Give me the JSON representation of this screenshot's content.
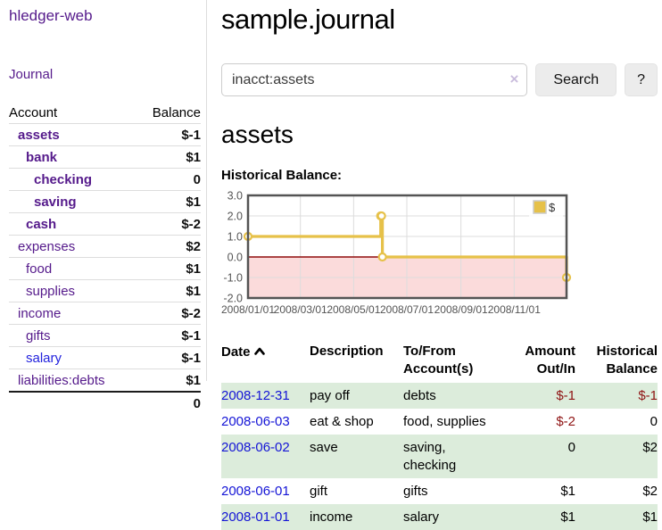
{
  "app": {
    "brand": "hledger-web",
    "nav": {
      "journal": "Journal"
    }
  },
  "sidebar": {
    "header": {
      "account": "Account",
      "balance": "Balance"
    },
    "accounts": [
      {
        "name": "assets",
        "indent": 1,
        "bold": true,
        "balance": "$-1",
        "balance_class": "neg-strong"
      },
      {
        "name": "bank",
        "indent": 2,
        "bold": true,
        "balance": "$1",
        "balance_class": ""
      },
      {
        "name": "checking",
        "indent": 3,
        "bold": true,
        "balance": "0",
        "balance_class": ""
      },
      {
        "name": "saving",
        "indent": 3,
        "bold": true,
        "balance": "$1",
        "balance_class": ""
      },
      {
        "name": "cash",
        "indent": 2,
        "bold": true,
        "balance": "$-2",
        "balance_class": "neg-strong"
      },
      {
        "name": "expenses",
        "indent": 1,
        "bold": false,
        "balance": "$2",
        "balance_class": ""
      },
      {
        "name": "food",
        "indent": 2,
        "bold": false,
        "balance": "$1",
        "balance_class": ""
      },
      {
        "name": "supplies",
        "indent": 2,
        "bold": false,
        "balance": "$1",
        "balance_class": ""
      },
      {
        "name": "income",
        "indent": 1,
        "bold": false,
        "balance": "$-2",
        "balance_class": "neg-soft"
      },
      {
        "name": "gifts",
        "indent": 2,
        "bold": false,
        "balance": "$-1",
        "balance_class": "neg-soft"
      },
      {
        "name": "salary",
        "indent": 2,
        "bold": false,
        "blue": true,
        "balance": "$-1",
        "balance_class": "neg-soft"
      },
      {
        "name": "liabilities:debts",
        "indent": 1,
        "bold": false,
        "balance": "$1",
        "balance_class": ""
      }
    ],
    "total": "0"
  },
  "main": {
    "title": "sample.journal",
    "search": {
      "value": "inacct:assets",
      "clear_icon": "×",
      "button_label": "Search",
      "help_label": "?"
    },
    "account_heading": "assets",
    "chart_heading": "Historical Balance:"
  },
  "chart_data": {
    "type": "line",
    "step": true,
    "title": "Historical Balance:",
    "xlim": [
      "2008-01-01",
      "2008-12-31"
    ],
    "ylim": [
      -2,
      3
    ],
    "x_ticks": [
      "2008/01/01",
      "2008/03/01",
      "2008/05/01",
      "2008/07/01",
      "2008/09/01",
      "2008/11/01"
    ],
    "y_ticks": [
      3.0,
      2.0,
      1.0,
      0.0,
      -1.0,
      -2.0
    ],
    "grid": true,
    "legend": {
      "label": "$",
      "position": "top-right"
    },
    "colors": {
      "series": "#e6c149",
      "marker_fill": "#ffffff",
      "negative_region": "#fbdbdb",
      "zero_line": "#8f0d0d",
      "border": "#545454",
      "gridline": "#dcdcdc",
      "tick_text": "#545454",
      "legend_border": "#cccccc"
    },
    "series": [
      {
        "name": "$",
        "points": [
          [
            "2008-01-01",
            1
          ],
          [
            "2008-06-01",
            2
          ],
          [
            "2008-06-02",
            2
          ],
          [
            "2008-06-03",
            0
          ],
          [
            "2008-12-31",
            -1
          ]
        ]
      }
    ]
  },
  "register": {
    "columns": {
      "date": "Date",
      "description": "Description",
      "accounts": "To/From Account(s)",
      "amount": "Amount Out/In",
      "balance": "Historical Balance"
    },
    "rows": [
      {
        "date": "2008-12-31",
        "description": "pay off",
        "accounts": "debts",
        "amount": "$-1",
        "amount_neg": true,
        "balance": "$-1",
        "balance_neg": true
      },
      {
        "date": "2008-06-03",
        "description": "eat & shop",
        "accounts": "food, supplies",
        "amount": "$-2",
        "amount_neg": true,
        "balance": "0",
        "balance_neg": false
      },
      {
        "date": "2008-06-02",
        "description": "save",
        "accounts": "saving, checking",
        "amount": "0",
        "amount_neg": false,
        "balance": "$2",
        "balance_neg": false
      },
      {
        "date": "2008-06-01",
        "description": "gift",
        "accounts": "gifts",
        "amount": "$1",
        "amount_neg": false,
        "balance": "$2",
        "balance_neg": false
      },
      {
        "date": "2008-01-01",
        "description": "income",
        "accounts": "salary",
        "amount": "$1",
        "amount_neg": false,
        "balance": "$1",
        "balance_neg": false
      }
    ]
  }
}
